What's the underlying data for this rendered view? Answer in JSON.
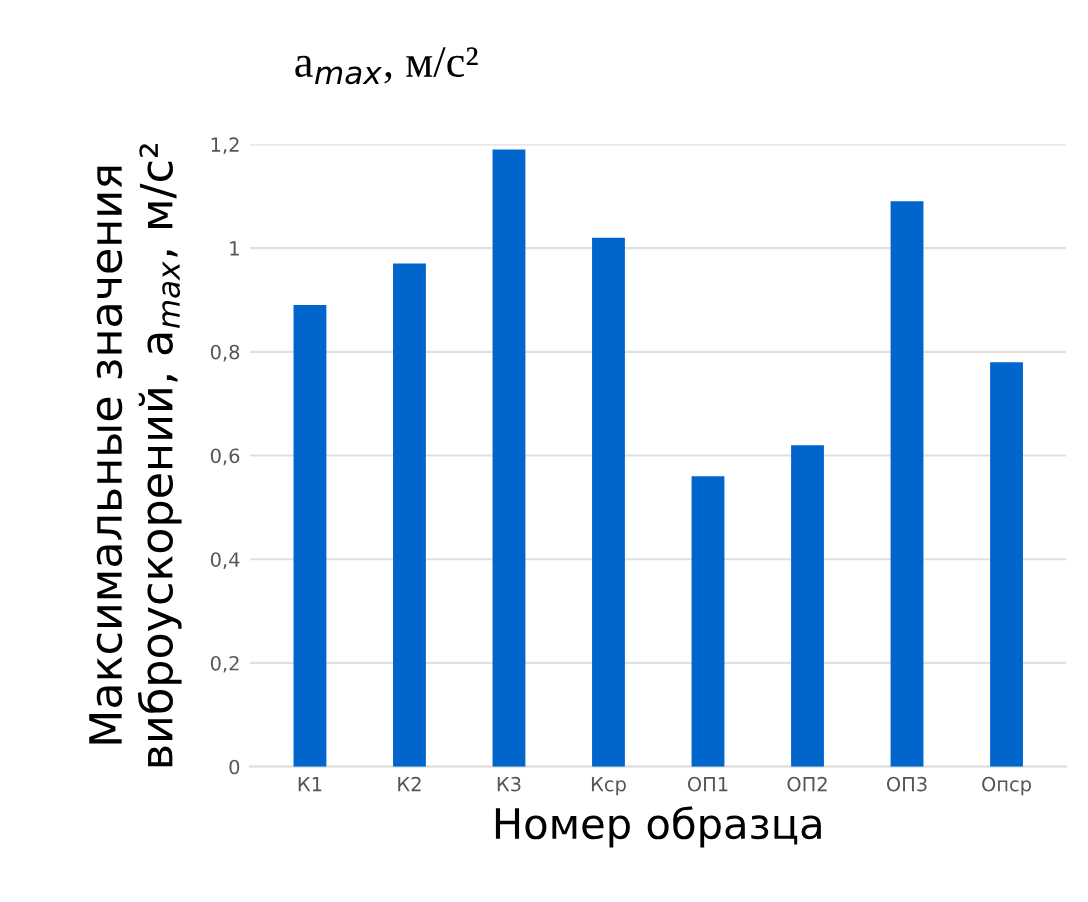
{
  "chart_data": {
    "type": "bar",
    "title": "a$_{max}$, м/с²",
    "xlabel": "Номер образца",
    "ylabel": "Максимальные значения\nвиброускорений, a$_{max}$, м/с²",
    "categories": [
      "К1",
      "К2",
      "К3",
      "Кср",
      "ОП1",
      "ОП2",
      "ОП3",
      "Опср"
    ],
    "values": [
      0.89,
      0.97,
      1.19,
      1.02,
      0.56,
      0.62,
      1.09,
      0.78
    ],
    "color": "#0066cc",
    "ylim": [
      0,
      1.2
    ],
    "yticks": [
      0,
      {
        "value": 0.2,
        "label": "0,2"
      },
      {
        "value": 0.4,
        "label": "0,4"
      },
      {
        "value": 0.6,
        "label": "0,6"
      },
      {
        "value": 0.8,
        "label": "0,8"
      },
      1,
      {
        "value": 1.2,
        "label": "1,2"
      }
    ],
    "grid": "y"
  }
}
